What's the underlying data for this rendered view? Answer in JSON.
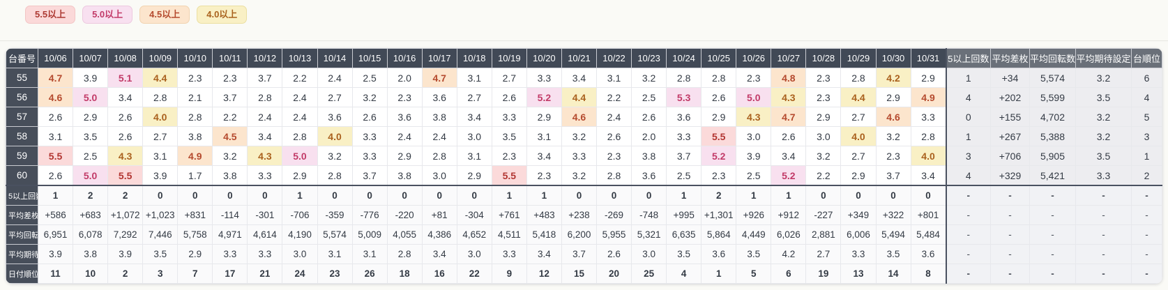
{
  "legend": {
    "items": [
      {
        "label": "5.5以上",
        "bg": "#fbd9d9",
        "fg": "#ad3a33",
        "threshold": 5.5
      },
      {
        "label": "5.0以上",
        "bg": "#f8e0f0",
        "fg": "#c23a68",
        "threshold": 5.0
      },
      {
        "label": "4.5以上",
        "bg": "#fce5cd",
        "fg": "#b54a2e",
        "threshold": 4.5
      },
      {
        "label": "4.0以上",
        "bg": "#f9f0c5",
        "fg": "#a9621d",
        "threshold": 4.0
      }
    ]
  },
  "colors": {
    "page_bg": "#fafaf6",
    "header_bg": "#414956",
    "summary_header_bg": "#6a7079",
    "row_label_bg": "#474e5a",
    "summary_cell_bg": "#ededf0",
    "stat_cell_bg": "#fafafb",
    "grid_border": "#e7e8ec",
    "section_border": "#4a5160"
  },
  "table": {
    "corner_label": "台番号",
    "date_columns": [
      "10/06",
      "10/07",
      "10/08",
      "10/09",
      "10/10",
      "10/11",
      "10/12",
      "10/13",
      "10/14",
      "10/15",
      "10/16",
      "10/17",
      "10/18",
      "10/19",
      "10/20",
      "10/21",
      "10/22",
      "10/23",
      "10/24",
      "10/25",
      "10/26",
      "10/27",
      "10/28",
      "10/29",
      "10/30",
      "10/31"
    ],
    "summary_columns": [
      "5以上回数",
      "平均差枚",
      "平均回転数",
      "平均期待設定",
      "台順位"
    ],
    "machine_rows": [
      {
        "machine": "55",
        "values": [
          "4.7",
          "3.9",
          "5.1",
          "4.4",
          "2.3",
          "2.3",
          "3.7",
          "2.2",
          "2.4",
          "2.5",
          "2.0",
          "4.7",
          "3.1",
          "2.7",
          "3.3",
          "3.4",
          "3.1",
          "3.2",
          "2.8",
          "2.8",
          "2.3",
          "4.8",
          "2.3",
          "2.8",
          "4.2",
          "2.9"
        ],
        "summary": [
          "1",
          "+34",
          "5,574",
          "3.2",
          "6"
        ]
      },
      {
        "machine": "56",
        "values": [
          "4.6",
          "5.0",
          "3.4",
          "2.8",
          "2.1",
          "3.7",
          "2.8",
          "2.4",
          "2.7",
          "3.2",
          "2.3",
          "3.6",
          "2.7",
          "2.6",
          "5.2",
          "4.4",
          "2.2",
          "2.5",
          "5.3",
          "2.6",
          "5.0",
          "4.3",
          "2.3",
          "4.4",
          "2.9",
          "4.9"
        ],
        "summary": [
          "4",
          "+202",
          "5,599",
          "3.5",
          "4"
        ]
      },
      {
        "machine": "57",
        "values": [
          "2.6",
          "2.9",
          "2.6",
          "4.0",
          "2.8",
          "2.2",
          "2.4",
          "2.4",
          "3.6",
          "2.6",
          "3.6",
          "3.8",
          "3.4",
          "3.3",
          "2.9",
          "4.6",
          "2.4",
          "2.6",
          "3.6",
          "2.9",
          "4.3",
          "4.7",
          "2.9",
          "2.7",
          "4.6",
          "3.3"
        ],
        "summary": [
          "0",
          "+155",
          "4,702",
          "3.2",
          "5"
        ]
      },
      {
        "machine": "58",
        "values": [
          "3.1",
          "3.5",
          "2.6",
          "2.7",
          "3.8",
          "4.5",
          "3.4",
          "2.8",
          "4.0",
          "3.3",
          "2.4",
          "2.4",
          "3.0",
          "3.5",
          "3.1",
          "3.2",
          "2.6",
          "2.0",
          "3.3",
          "5.5",
          "3.0",
          "2.6",
          "3.0",
          "4.0",
          "3.2",
          "2.8"
        ],
        "summary": [
          "1",
          "+267",
          "5,388",
          "3.2",
          "3"
        ]
      },
      {
        "machine": "59",
        "values": [
          "5.5",
          "2.5",
          "4.3",
          "3.1",
          "4.9",
          "3.2",
          "4.3",
          "5.0",
          "3.2",
          "3.3",
          "2.9",
          "2.8",
          "3.1",
          "2.3",
          "3.4",
          "3.3",
          "2.3",
          "3.8",
          "3.7",
          "5.2",
          "3.9",
          "3.4",
          "3.2",
          "2.7",
          "2.3",
          "4.0"
        ],
        "summary": [
          "3",
          "+706",
          "5,905",
          "3.5",
          "1"
        ]
      },
      {
        "machine": "60",
        "values": [
          "2.6",
          "5.0",
          "5.5",
          "3.9",
          "1.7",
          "3.8",
          "3.3",
          "2.9",
          "2.8",
          "3.7",
          "3.8",
          "3.0",
          "2.9",
          "5.5",
          "2.3",
          "3.2",
          "2.8",
          "3.6",
          "2.5",
          "2.3",
          "2.5",
          "5.2",
          "2.2",
          "2.9",
          "3.7",
          "3.4"
        ],
        "summary": [
          "4",
          "+329",
          "5,421",
          "3.3",
          "2"
        ]
      }
    ],
    "stat_rows": [
      {
        "label": "5以上回数",
        "bold": true,
        "values": [
          "1",
          "2",
          "2",
          "0",
          "0",
          "0",
          "0",
          "1",
          "0",
          "0",
          "0",
          "0",
          "0",
          "1",
          "1",
          "0",
          "0",
          "0",
          "1",
          "2",
          "1",
          "1",
          "0",
          "0",
          "0",
          "0"
        ],
        "summary": [
          "-",
          "-",
          "-",
          "-",
          "-"
        ]
      },
      {
        "label": "平均差枚",
        "bold": false,
        "values": [
          "+586",
          "+683",
          "+1,072",
          "+1,023",
          "+831",
          "-114",
          "-301",
          "-706",
          "-359",
          "-776",
          "-220",
          "+81",
          "-304",
          "+761",
          "+483",
          "+238",
          "-269",
          "-748",
          "+995",
          "+1,301",
          "+926",
          "+912",
          "-227",
          "+349",
          "+322",
          "+801"
        ],
        "summary": [
          "-",
          "-",
          "-",
          "-",
          "-"
        ]
      },
      {
        "label": "平均回転数",
        "bold": false,
        "values": [
          "6,951",
          "6,078",
          "7,292",
          "7,446",
          "5,758",
          "4,971",
          "4,614",
          "4,190",
          "5,574",
          "5,009",
          "4,055",
          "4,386",
          "4,652",
          "4,511",
          "5,418",
          "6,200",
          "5,955",
          "5,321",
          "6,635",
          "5,864",
          "4,449",
          "6,026",
          "2,881",
          "6,006",
          "5,494",
          "5,484"
        ],
        "summary": [
          "-",
          "-",
          "-",
          "-",
          "-"
        ]
      },
      {
        "label": "平均期待設定",
        "bold": false,
        "values": [
          "3.9",
          "3.8",
          "3.9",
          "3.5",
          "2.9",
          "3.3",
          "3.3",
          "3.0",
          "3.1",
          "3.1",
          "2.8",
          "3.4",
          "3.0",
          "3.3",
          "3.4",
          "3.7",
          "2.6",
          "3.0",
          "3.5",
          "3.6",
          "3.5",
          "4.2",
          "2.7",
          "3.3",
          "3.5",
          "3.6"
        ],
        "summary": [
          "-",
          "-",
          "-",
          "-",
          "-"
        ]
      },
      {
        "label": "日付順位",
        "bold": true,
        "values": [
          "11",
          "10",
          "2",
          "3",
          "7",
          "17",
          "21",
          "24",
          "23",
          "26",
          "18",
          "16",
          "22",
          "9",
          "12",
          "15",
          "20",
          "25",
          "4",
          "1",
          "5",
          "6",
          "19",
          "13",
          "14",
          "8"
        ],
        "summary": [
          "-",
          "-",
          "-",
          "-",
          "-"
        ]
      }
    ]
  }
}
